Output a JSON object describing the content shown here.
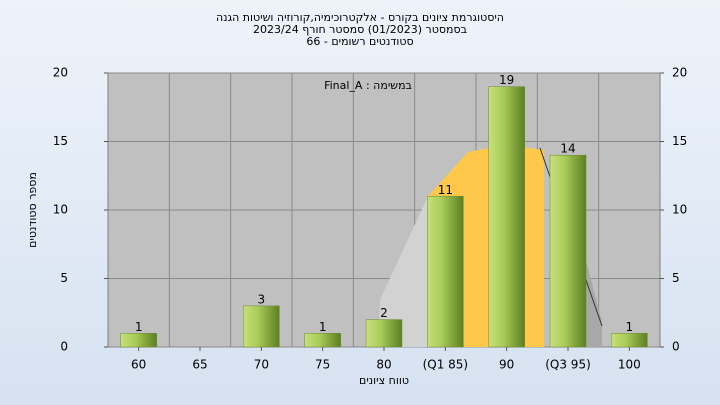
{
  "chart_data": {
    "type": "bar",
    "title": "היסטוגרמת ציונים בקורס - אלקטרוכימיה,קורוזיה ושיטות הגנה",
    "subtitle": "בסמסטר  (01/2023)  סמסטר חורף 2023/24",
    "subtitle2": "סטודנטים רשומים - 66",
    "annotation": "Final_A : במשימה",
    "x_label": "טווח ציונים",
    "y_label": "מספר סטודנטים",
    "categories": [
      "60",
      "65",
      "70",
      "75",
      "80",
      "(Q1 85)",
      "90",
      "(Q3 95)",
      "100"
    ],
    "values": [
      1,
      null,
      3,
      1,
      2,
      11,
      19,
      14,
      1
    ],
    "color": "#9bc34a",
    "ylim": [
      0,
      20
    ],
    "yticks": [
      0,
      5,
      10,
      15,
      20
    ],
    "y2lim": [
      0,
      20
    ],
    "y2ticks": [
      0,
      5,
      10,
      15,
      20
    ],
    "grid": true
  }
}
